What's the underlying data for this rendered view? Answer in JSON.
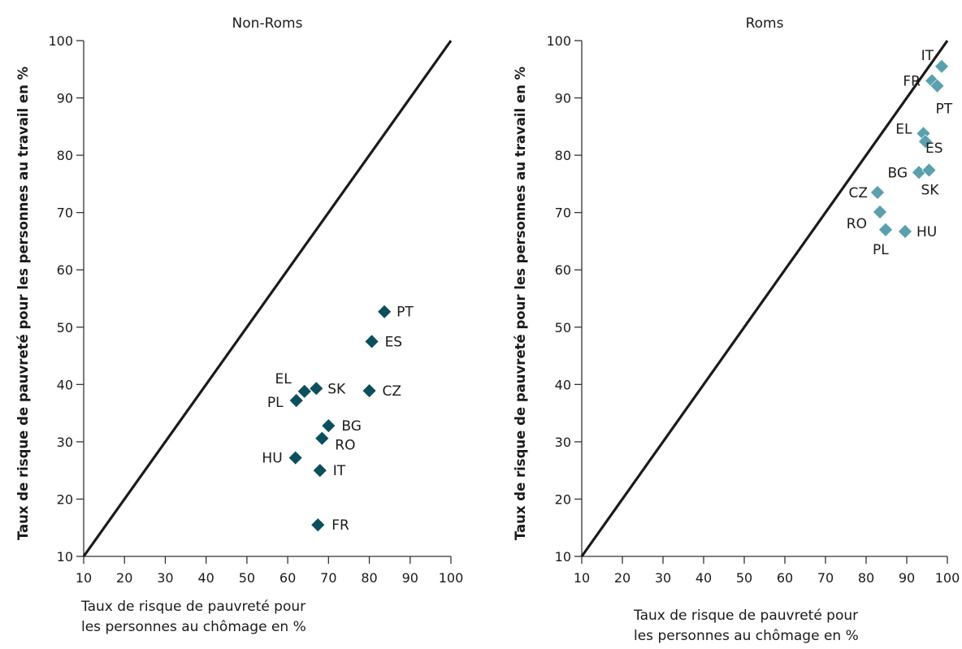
{
  "chart_data": [
    {
      "type": "scatter",
      "title": "Non-Roms",
      "xlabel": [
        "Taux de risque de pauvreté pour",
        "les personnes au chômage en %"
      ],
      "ylabel": "Taux de risque de pauvreté pour les personnes au travail en %",
      "xlim": [
        10,
        100
      ],
      "ylim": [
        10,
        100
      ],
      "xticks": [
        "10",
        "20",
        "30",
        "40",
        "50",
        "60",
        "70",
        "80",
        "90",
        "100"
      ],
      "yticks": [
        "10",
        "20",
        "30",
        "40",
        "50",
        "60",
        "70",
        "80",
        "90",
        "100"
      ],
      "reference_line": "y = x",
      "marker": "diamond",
      "marker_color": "#0b4f5c",
      "points": [
        {
          "label": "PT",
          "x": 83.7,
          "y": 52.7
        },
        {
          "label": "ES",
          "x": 80.6,
          "y": 47.5
        },
        {
          "label": "SK",
          "x": 67.0,
          "y": 39.3
        },
        {
          "label": "EL",
          "x": 64.1,
          "y": 38.8
        },
        {
          "label": "PL",
          "x": 62.1,
          "y": 37.2
        },
        {
          "label": "CZ",
          "x": 80.0,
          "y": 38.9
        },
        {
          "label": "BG",
          "x": 70.0,
          "y": 32.8
        },
        {
          "label": "RO",
          "x": 68.4,
          "y": 30.6
        },
        {
          "label": "HU",
          "x": 61.9,
          "y": 27.2
        },
        {
          "label": "IT",
          "x": 67.9,
          "y": 25.0
        },
        {
          "label": "FR",
          "x": 67.4,
          "y": 15.5
        }
      ]
    },
    {
      "type": "scatter",
      "title": "Roms",
      "xlabel": [
        "Taux de risque de pauvreté pour",
        "les personnes au chômage en %"
      ],
      "ylabel": "Taux de risque de pauvreté pour les personnes au travail en %",
      "xlim": [
        10,
        100
      ],
      "ylim": [
        10,
        100
      ],
      "xticks": [
        "10",
        "20",
        "30",
        "40",
        "50",
        "60",
        "70",
        "80",
        "90",
        "100"
      ],
      "yticks": [
        "10",
        "20",
        "30",
        "40",
        "50",
        "60",
        "70",
        "80",
        "90",
        "100"
      ],
      "reference_line": "y = x",
      "marker": "diamond",
      "marker_color": "#5aa0ad",
      "points": [
        {
          "label": "IT",
          "x": 98.6,
          "y": 95.5
        },
        {
          "label": "FR",
          "x": 96.2,
          "y": 93.0
        },
        {
          "label": "PT",
          "x": 97.5,
          "y": 92.1
        },
        {
          "label": "EL",
          "x": 94.1,
          "y": 83.8
        },
        {
          "label": "ES",
          "x": 94.6,
          "y": 82.4
        },
        {
          "label": "BG",
          "x": 93.0,
          "y": 77.0
        },
        {
          "label": "SK",
          "x": 95.5,
          "y": 77.4
        },
        {
          "label": "CZ",
          "x": 82.8,
          "y": 73.5
        },
        {
          "label": "RO",
          "x": 83.4,
          "y": 70.1
        },
        {
          "label": "PL",
          "x": 84.8,
          "y": 67.0
        },
        {
          "label": "HU",
          "x": 89.6,
          "y": 66.7
        }
      ]
    }
  ]
}
